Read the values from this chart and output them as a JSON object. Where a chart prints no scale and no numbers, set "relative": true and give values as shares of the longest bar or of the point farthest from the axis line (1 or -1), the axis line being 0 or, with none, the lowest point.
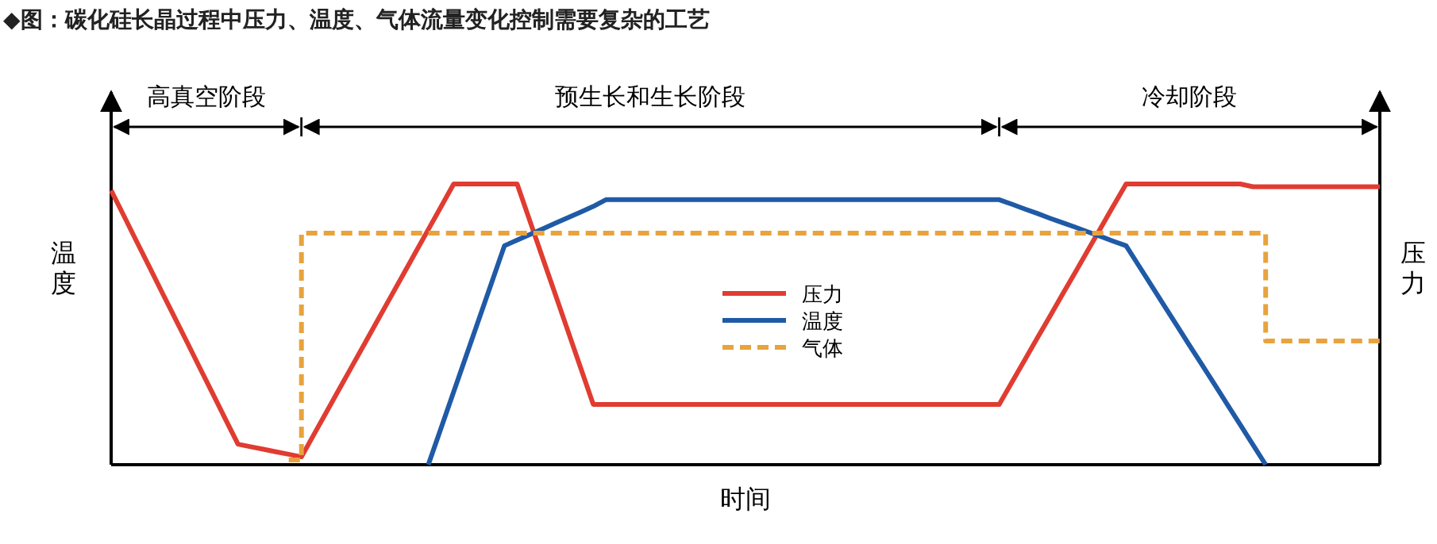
{
  "chart_data": {
    "type": "line",
    "title": "◆图：碳化硅长晶过程中压力、温度、气体流量变化控制需要复杂的工艺",
    "xlabel": "时间",
    "ylabel": "温度",
    "y2label": "压力",
    "relative": true,
    "legend": "center",
    "categories": [
      null,
      null,
      null,
      null,
      null,
      null,
      null,
      null,
      null,
      null,
      null,
      null,
      null,
      null,
      null,
      null,
      null,
      null,
      null,
      null,
      null,
      null,
      null,
      null,
      null,
      null,
      null,
      null,
      null,
      null,
      null,
      null,
      null,
      null,
      null,
      null,
      null,
      null,
      null,
      null,
      null,
      null,
      null,
      null,
      null,
      null,
      null,
      null,
      null,
      null,
      null,
      null,
      null,
      null,
      null,
      null,
      null,
      null,
      null,
      null,
      null,
      null,
      null,
      null,
      null,
      null,
      null,
      null,
      null,
      null,
      null,
      null,
      null,
      null,
      null,
      null,
      null,
      null,
      null,
      null,
      null,
      null,
      null,
      null,
      null,
      null,
      null,
      null,
      null,
      null,
      null,
      null,
      null,
      null,
      null,
      null,
      null,
      null,
      null,
      null,
      null
    ],
    "annotations": [
      "高真空阶段",
      "预生长和生长阶段",
      "冷却阶段"
    ],
    "series": [
      {
        "name": "压力",
        "color": "#e03c31",
        "line_style": "solid",
        "values": [
          0.977,
          0.887,
          0.796,
          0.706,
          0.615,
          0.525,
          0.435,
          0.344,
          0.254,
          0.163,
          0.073,
          0.064,
          0.055,
          0.046,
          0.037,
          0.028,
          0.109,
          0.19,
          0.271,
          0.352,
          0.433,
          0.514,
          0.595,
          0.676,
          0.757,
          0.838,
          0.919,
          1,
          1,
          1,
          1,
          1,
          1,
          0.869,
          0.738,
          0.608,
          0.477,
          0.346,
          0.215,
          0.215,
          0.215,
          0.215,
          0.215,
          0.215,
          0.215,
          0.215,
          0.215,
          0.215,
          0.215,
          0.215,
          0.215,
          0.215,
          0.215,
          0.215,
          0.215,
          0.215,
          0.215,
          0.215,
          0.215,
          0.215,
          0.215,
          0.215,
          0.215,
          0.215,
          0.215,
          0.215,
          0.215,
          0.215,
          0.215,
          0.215,
          0.215,
          0.294,
          0.372,
          0.451,
          0.529,
          0.608,
          0.686,
          0.765,
          0.843,
          0.922,
          1,
          1,
          1,
          1,
          1,
          1,
          1,
          1,
          1,
          1,
          0.99,
          0.99,
          0.99,
          0.99,
          0.99,
          0.99,
          0.99,
          0.99,
          0.99,
          0.99,
          0.99
        ]
      },
      {
        "name": "温度",
        "color": "#1f5aa6",
        "line_style": "solid",
        "values": [
          null,
          null,
          null,
          null,
          null,
          null,
          null,
          null,
          null,
          null,
          null,
          null,
          null,
          null,
          null,
          null,
          null,
          null,
          null,
          null,
          null,
          null,
          null,
          null,
          null,
          0,
          0.13,
          0.26,
          0.39,
          0.52,
          0.65,
          0.78,
          0.8,
          0.82,
          0.84,
          0.86,
          0.88,
          0.9,
          0.92,
          0.944,
          0.944,
          0.944,
          0.944,
          0.944,
          0.944,
          0.944,
          0.944,
          0.944,
          0.944,
          0.944,
          0.944,
          0.944,
          0.944,
          0.944,
          0.944,
          0.944,
          0.944,
          0.944,
          0.944,
          0.944,
          0.944,
          0.944,
          0.944,
          0.944,
          0.944,
          0.944,
          0.944,
          0.944,
          0.944,
          0.944,
          0.944,
          0.928,
          0.911,
          0.895,
          0.878,
          0.862,
          0.846,
          0.829,
          0.813,
          0.796,
          0.78,
          0.709,
          0.638,
          0.567,
          0.496,
          0.425,
          0.355,
          0.284,
          0.213,
          0.142,
          0.071,
          0,
          null,
          null,
          null,
          null,
          null,
          null,
          null,
          null,
          null
        ]
      },
      {
        "name": "气体",
        "color": "#e8a33d",
        "type": "step",
        "line_style": "dashed",
        "values": [
          null,
          null,
          null,
          null,
          null,
          null,
          null,
          null,
          null,
          null,
          null,
          null,
          null,
          null,
          0.017,
          0.825,
          0.825,
          0.825,
          0.825,
          0.825,
          0.825,
          0.825,
          0.825,
          0.825,
          0.825,
          0.825,
          0.825,
          0.825,
          0.825,
          0.825,
          0.825,
          0.825,
          0.825,
          0.825,
          0.825,
          0.825,
          0.825,
          0.825,
          0.825,
          0.825,
          0.825,
          0.825,
          0.825,
          0.825,
          0.825,
          0.825,
          0.825,
          0.825,
          0.825,
          0.825,
          0.825,
          0.825,
          0.825,
          0.825,
          0.825,
          0.825,
          0.825,
          0.825,
          0.825,
          0.825,
          0.825,
          0.825,
          0.825,
          0.825,
          0.825,
          0.825,
          0.825,
          0.825,
          0.825,
          0.825,
          0.825,
          0.825,
          0.825,
          0.825,
          0.825,
          0.825,
          0.825,
          0.825,
          0.825,
          0.825,
          0.825,
          0.825,
          0.825,
          0.825,
          0.825,
          0.825,
          0.825,
          0.825,
          0.825,
          0.825,
          0.825,
          0.441,
          0.441,
          0.441,
          0.441,
          0.441,
          0.441,
          0.441,
          0.441,
          0.441,
          0.441
        ]
      }
    ]
  }
}
